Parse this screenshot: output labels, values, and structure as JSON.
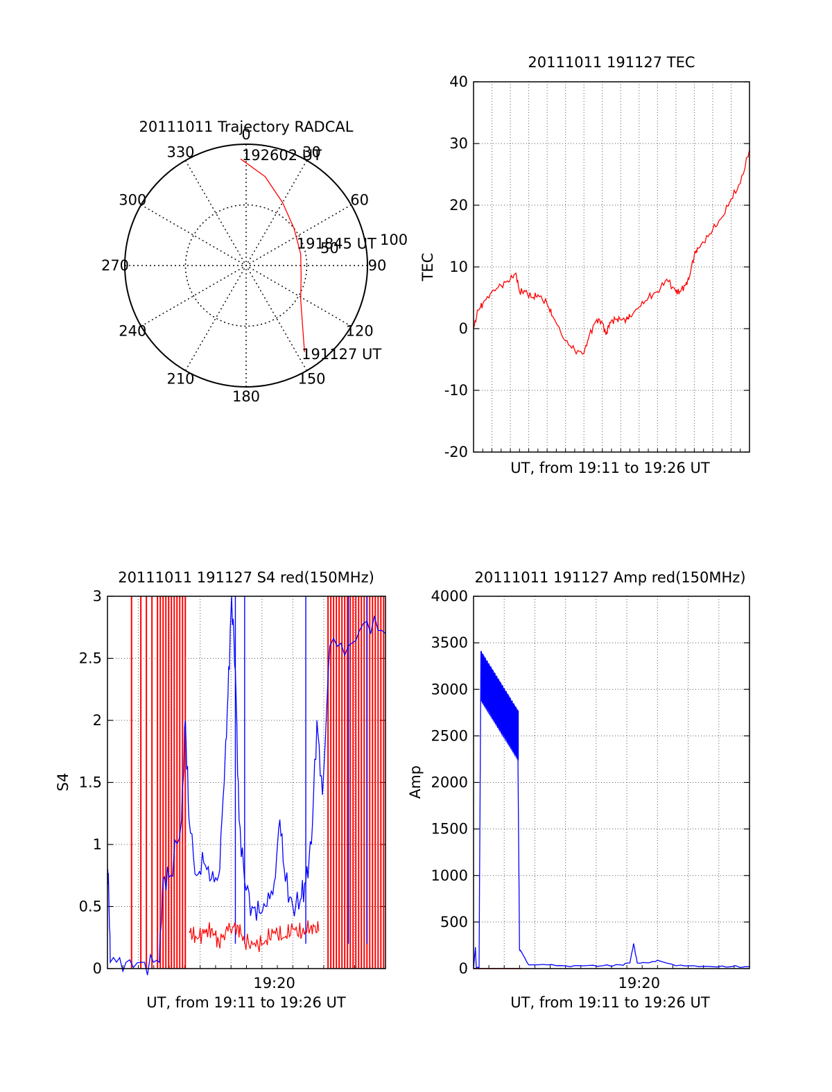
{
  "colors": {
    "red": "#ff0000",
    "blue": "#0000ff",
    "axis": "#000000",
    "grid": "#555555"
  },
  "chart_data": [
    {
      "panel": "polar",
      "type": "scatter",
      "title": "20111011 Trajectory RADCAL",
      "azimuth_labels": [
        "0",
        "30",
        "60",
        "90",
        "120",
        "150",
        "180",
        "210",
        "240",
        "270",
        "300",
        "330"
      ],
      "radial_labels": [
        "50",
        "100"
      ],
      "radial_max": 100,
      "grid": true,
      "series": [
        {
          "color": "red",
          "points": [
            {
              "az": 357,
              "r": 88
            },
            {
              "az": 12,
              "r": 75
            },
            {
              "az": 30,
              "r": 60
            },
            {
              "az": 52,
              "r": 50
            },
            {
              "az": 78,
              "r": 46
            },
            {
              "az": 100,
              "r": 46
            },
            {
              "az": 122,
              "r": 53
            },
            {
              "az": 146,
              "r": 86
            }
          ]
        }
      ],
      "annotations": [
        {
          "text": "192602 UT",
          "az": 357,
          "r": 88
        },
        {
          "text": "191845 UT",
          "az": 78,
          "r": 46
        },
        {
          "text": "191127 UT",
          "az": 146,
          "r": 86
        }
      ]
    },
    {
      "panel": "tec",
      "type": "line",
      "title": "20111011 191127 TEC",
      "xlabel": "UT, from 19:11 to 19:26 UT",
      "ylabel": "TEC",
      "xlim": [
        0,
        15
      ],
      "ylim": [
        -20,
        40
      ],
      "yticks": [
        "-20",
        "-10",
        "0",
        "10",
        "20",
        "30",
        "40"
      ],
      "grid": true,
      "series": [
        {
          "color": "red",
          "x": [
            0,
            0.25,
            0.5,
            1,
            1.5,
            2,
            2.3,
            2.5,
            2.8,
            3.2,
            3.5,
            4,
            4.3,
            5,
            5.5,
            6,
            6.3,
            6.7,
            7,
            7.2,
            7.4,
            7.7,
            8,
            8.3,
            8.5,
            9,
            9.5,
            10,
            10.5,
            11,
            11.2,
            11.5,
            11.7,
            12,
            12.2,
            12.5,
            13,
            13.5,
            14,
            14.5,
            15
          ],
          "y": [
            0,
            3,
            4,
            6,
            7,
            8,
            9,
            6,
            6,
            5,
            5.5,
            4,
            2,
            -2,
            -3.5,
            -4,
            -1,
            1.5,
            1,
            -1,
            1,
            1.5,
            1.5,
            1.5,
            2,
            3.5,
            5,
            6,
            8,
            6,
            6,
            7,
            8,
            12,
            13,
            14,
            16,
            18,
            21,
            23.5,
            29
          ]
        }
      ]
    },
    {
      "panel": "s4",
      "type": "line",
      "title": "20111011 191127 S4 red(150MHz)",
      "xlabel": "UT, from 19:11 to 19:26 UT",
      "ylabel": "S4",
      "xlim": [
        0,
        15
      ],
      "ylim": [
        0,
        3
      ],
      "yticks": [
        "0",
        "0.5",
        "1",
        "1.5",
        "2",
        "2.5",
        "3"
      ],
      "xticks": [
        {
          "x": 9,
          "label": "19:20"
        }
      ],
      "grid": true,
      "series": [
        {
          "color": "red",
          "x": [
            4.4,
            4.8,
            5.2,
            5.6,
            6.0,
            6.5,
            7.0,
            7.4,
            8.0,
            8.5,
            9.0,
            9.5,
            10.0,
            10.5,
            11.0,
            11.4
          ],
          "y": [
            0.3,
            0.25,
            0.28,
            0.32,
            0.22,
            0.3,
            0.35,
            0.22,
            0.18,
            0.22,
            0.3,
            0.25,
            0.32,
            0.28,
            0.35,
            0.3
          ]
        },
        {
          "color": "blue",
          "x": [
            0,
            0.05,
            0.15,
            1,
            2,
            2.8,
            3.0,
            3.4,
            4.0,
            4.2,
            4.4,
            4.8,
            5.2,
            5.6,
            6.0,
            6.3,
            6.5,
            6.7,
            6.9,
            7.1,
            7.4,
            7.8,
            8.2,
            8.6,
            9.0,
            9.3,
            9.6,
            10.0,
            10.4,
            10.7,
            11.0,
            11.3,
            11.6,
            12.0,
            13,
            14,
            15
          ],
          "y": [
            0.72,
            0.77,
            0.05,
            0.05,
            0.05,
            0.05,
            0.72,
            0.75,
            1.2,
            2.0,
            1.2,
            0.75,
            0.85,
            0.72,
            0.75,
            1.5,
            2.2,
            3.0,
            2.4,
            1.2,
            0.7,
            0.5,
            0.45,
            0.5,
            0.7,
            1.2,
            0.7,
            0.5,
            0.55,
            0.7,
            1.0,
            2.0,
            1.4,
            2.6,
            2.6,
            2.8,
            2.7
          ]
        }
      ],
      "spikes_red_x": [
        1.3,
        1.8,
        2.1,
        2.4,
        2.7,
        2.85,
        3.0,
        3.15,
        3.3,
        3.45,
        3.6,
        3.75,
        3.9,
        4.05,
        4.2,
        11.9,
        12.05,
        12.2,
        12.35,
        12.5,
        12.65,
        12.8,
        12.95,
        13.1,
        13.25,
        13.4,
        13.55,
        13.7,
        13.85,
        14.0,
        14.15,
        14.3,
        14.45,
        14.6,
        14.75,
        14.9
      ],
      "spikes_blue_x": [
        6.9,
        7.4,
        10.7,
        13.0,
        14.0
      ]
    },
    {
      "panel": "amp",
      "type": "line",
      "title": "20111011 191127 Amp red(150MHz)",
      "xlabel": "UT, from 19:11 to 19:26 UT",
      "ylabel": "Amp",
      "xlim": [
        0,
        15
      ],
      "ylim": [
        0,
        4000
      ],
      "yticks": [
        "0",
        "500",
        "1000",
        "1500",
        "2000",
        "2500",
        "3000",
        "3500",
        "4000"
      ],
      "xticks": [
        {
          "x": 9,
          "label": "19:20"
        }
      ],
      "grid": true,
      "series": [
        {
          "color": "blue",
          "x": [
            0,
            0.1,
            0.15,
            0.3,
            0.4,
            0.5,
            1,
            1.5,
            2,
            2.4,
            2.5,
            2.6,
            3,
            4,
            5,
            6,
            7,
            8,
            8.5,
            8.7,
            8.9,
            9.5,
            10,
            11,
            12,
            13,
            14,
            15
          ],
          "y": [
            0,
            230,
            10,
            10,
            3400,
            3200,
            3000,
            2800,
            2650,
            2600,
            200,
            180,
            40,
            40,
            30,
            30,
            30,
            40,
            60,
            270,
            60,
            60,
            90,
            30,
            30,
            20,
            20,
            20
          ]
        },
        {
          "color": "red",
          "x": [
            0,
            2.6
          ],
          "y": [
            0,
            0
          ]
        }
      ]
    }
  ]
}
